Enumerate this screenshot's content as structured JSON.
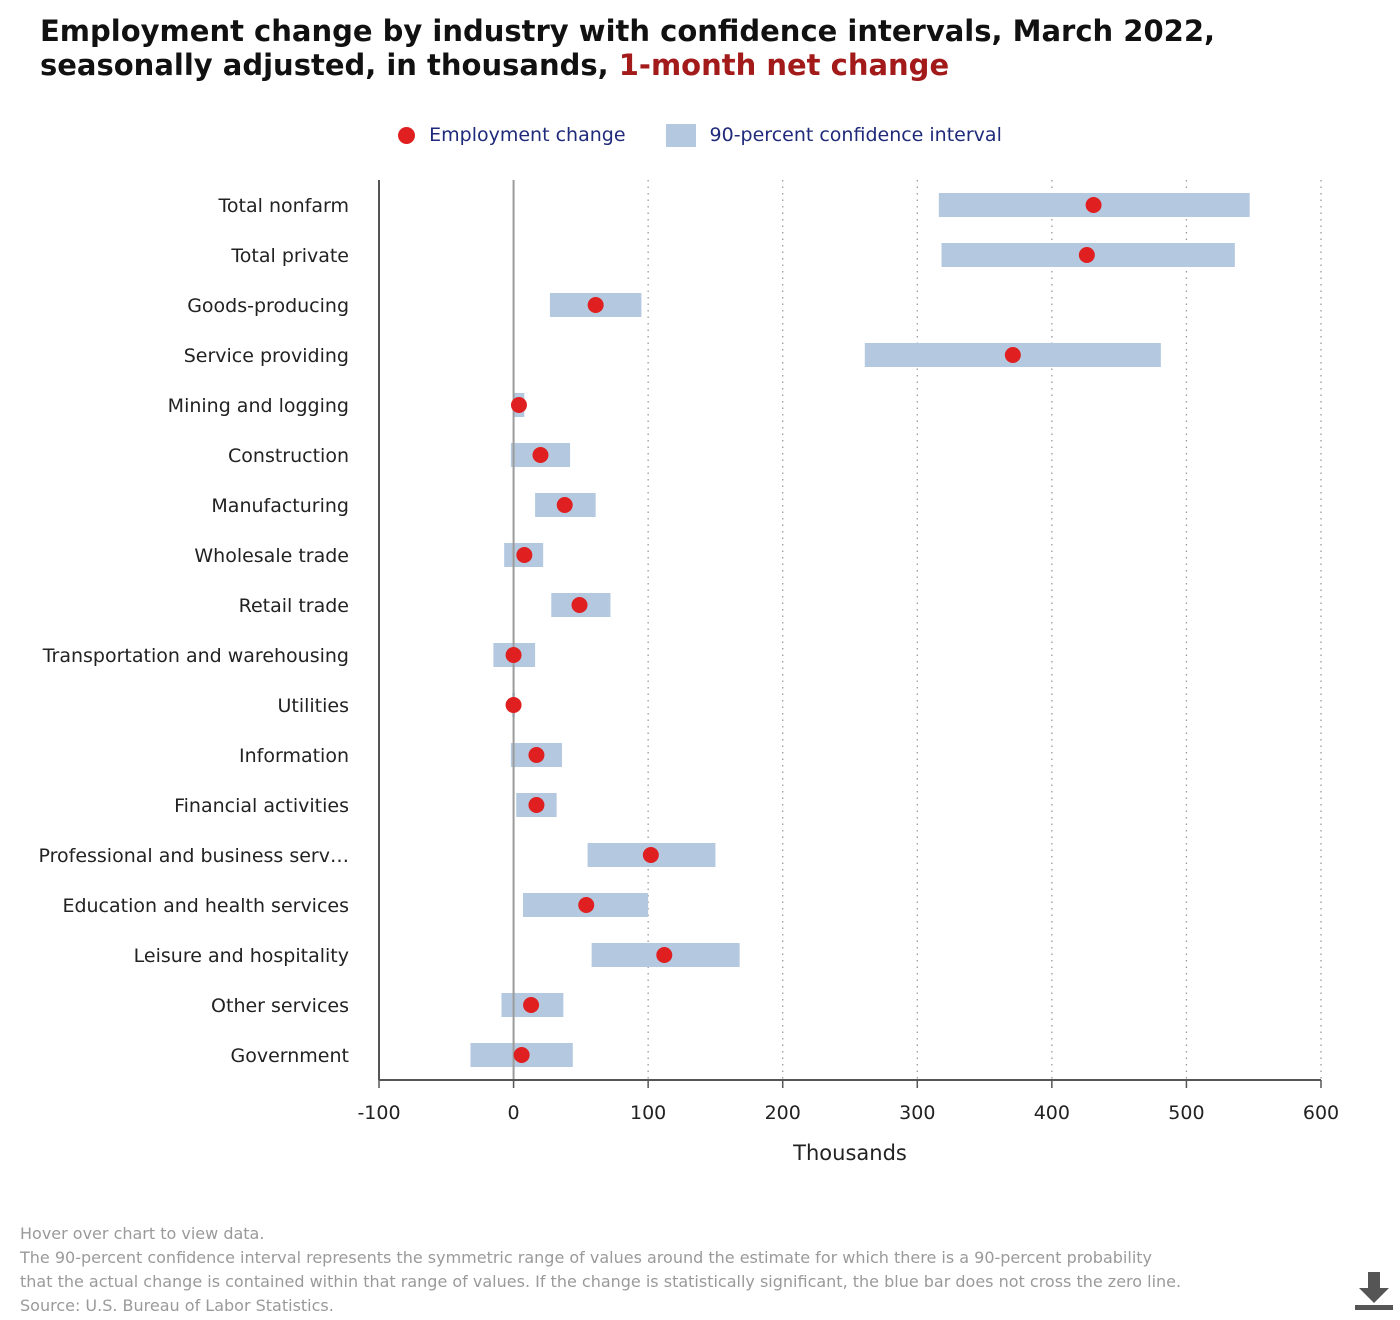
{
  "title": {
    "main": "Employment change by industry with confidence intervals, March 2022, seasonally adjusted, in thousands,",
    "highlight": "1-month net change"
  },
  "legend": {
    "point_label": "Employment change",
    "interval_label": "90-percent confidence interval"
  },
  "colors": {
    "point": "#e02020",
    "interval": "#b4c9e0",
    "title_accent": "#a31a1a",
    "legend_text": "#1f2a7a"
  },
  "chart_data": {
    "type": "scatter",
    "xlabel": "Thousands",
    "xlim": [
      -100,
      600
    ],
    "xticks": [
      -100,
      0,
      100,
      200,
      300,
      400,
      500,
      600
    ],
    "grid": "vertical dotted",
    "legend_position": "top-center",
    "categories": [
      "Total nonfarm",
      "Total private",
      "Goods-producing",
      "Service providing",
      "Mining and logging",
      "Construction",
      "Manufacturing",
      "Wholesale trade",
      "Retail trade",
      "Transportation and warehousing",
      "Utilities",
      "Information",
      "Financial activities",
      "Professional and business serv…",
      "Education and health services",
      "Leisure and hospitality",
      "Other services",
      "Government"
    ],
    "series": [
      {
        "name": "Employment change",
        "values": [
          431,
          426,
          61,
          371,
          4,
          20,
          38,
          8,
          49,
          0,
          0,
          17,
          17,
          102,
          54,
          112,
          13,
          6
        ]
      },
      {
        "name": "90-percent confidence interval",
        "low": [
          316,
          318,
          27,
          261,
          0,
          -2,
          16,
          -7,
          28,
          -15,
          -1,
          -2,
          2,
          55,
          7,
          58,
          -9,
          -32
        ],
        "high": [
          547,
          536,
          95,
          481,
          8,
          42,
          61,
          22,
          72,
          16,
          1,
          36,
          32,
          150,
          100,
          168,
          37,
          44
        ]
      }
    ]
  },
  "footer": {
    "line1": "Hover over chart to view data.",
    "line2": "The 90-percent confidence interval represents the symmetric range of values around the estimate for which there is a 90-percent probability",
    "line3": "that the actual change is contained within that range of values. If the change is statistically significant, the blue bar does not cross the zero line.",
    "line4": "Source: U.S. Bureau of Labor Statistics."
  }
}
